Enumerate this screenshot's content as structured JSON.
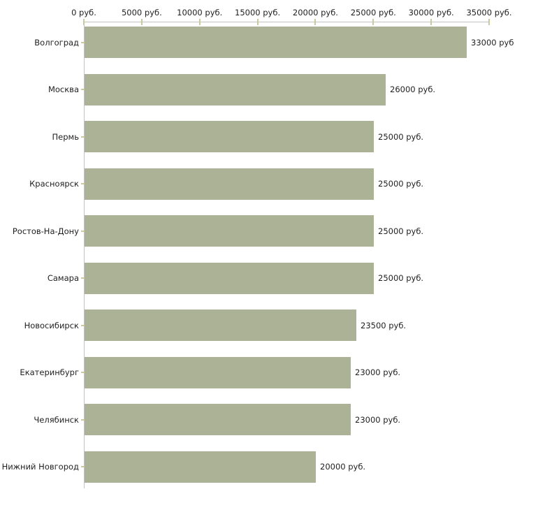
{
  "chart_data": {
    "type": "bar",
    "orientation": "horizontal",
    "title": "",
    "xlabel": "",
    "ylabel": "",
    "unit": "руб.",
    "categories": [
      "Волгоград",
      "Москва",
      "Пермь",
      "Красноярск",
      "Ростов-На-Дону",
      "Самара",
      "Новосибирск",
      "Екатеринбург",
      "Челябинск",
      "Нижний Новгород"
    ],
    "values": [
      33000,
      26000,
      25000,
      25000,
      25000,
      25000,
      23500,
      23000,
      23000,
      20000
    ],
    "value_labels": [
      "33000 руб",
      "26000 руб.",
      "25000 руб.",
      "25000 руб.",
      "25000 руб.",
      "25000 руб.",
      "23500 руб.",
      "23000 руб.",
      "23000 руб.",
      "20000 руб."
    ],
    "x_axis": {
      "tick_values": [
        0,
        5000,
        10000,
        15000,
        20000,
        25000,
        30000,
        35000
      ],
      "tick_labels": [
        "0 руб.",
        "5000 руб.",
        "10000 руб.",
        "15000 руб.",
        "20000 руб.",
        "25000 руб.",
        "30000 руб.",
        "35000 руб."
      ],
      "min": 0,
      "max": 35000,
      "position": "top"
    },
    "legend": "none",
    "grid": "off",
    "colors": {
      "bar": "#acb296",
      "axis_line": "#c2c2c2",
      "tick_mark": "#caca9e",
      "text": "#1f1f1f",
      "background": "#ffffff"
    }
  }
}
